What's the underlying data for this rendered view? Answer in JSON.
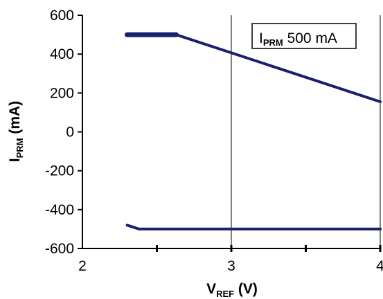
{
  "chart_data": {
    "type": "line",
    "xlabel": {
      "main": "V",
      "sub": "REF",
      "suffix": " (V)"
    },
    "ylabel": {
      "main": "I",
      "sub": "PRM",
      "suffix": "  (mA)"
    },
    "xlim": [
      2,
      4
    ],
    "ylim": [
      -600,
      600
    ],
    "x_ticks": [
      2,
      3,
      4
    ],
    "x_tick_labels": [
      "2",
      "3",
      "4"
    ],
    "y_ticks": [
      -600,
      -400,
      -200,
      0,
      200,
      400,
      600
    ],
    "y_tick_labels": [
      "-600",
      "-400",
      "-200",
      "0",
      "200",
      "400",
      "600"
    ],
    "grid": {
      "x": true,
      "y": false
    },
    "legend": {
      "placement": "top-right",
      "label_main": "I",
      "label_sub": "PRM",
      "label_value": " 500 mA"
    },
    "series": [
      {
        "name": "I PRM 500 mA",
        "color": "#1a1f6e",
        "segments": [
          {
            "width": "thick",
            "points": [
              [
                2.3,
                500
              ],
              [
                2.63,
                500
              ]
            ]
          },
          {
            "width": "normal",
            "points": [
              [
                2.63,
                500
              ],
              [
                4.0,
                155
              ]
            ]
          },
          {
            "width": "normal",
            "points": [
              [
                2.3,
                -480
              ],
              [
                2.38,
                -500
              ],
              [
                4.0,
                -500
              ]
            ]
          }
        ]
      }
    ]
  }
}
